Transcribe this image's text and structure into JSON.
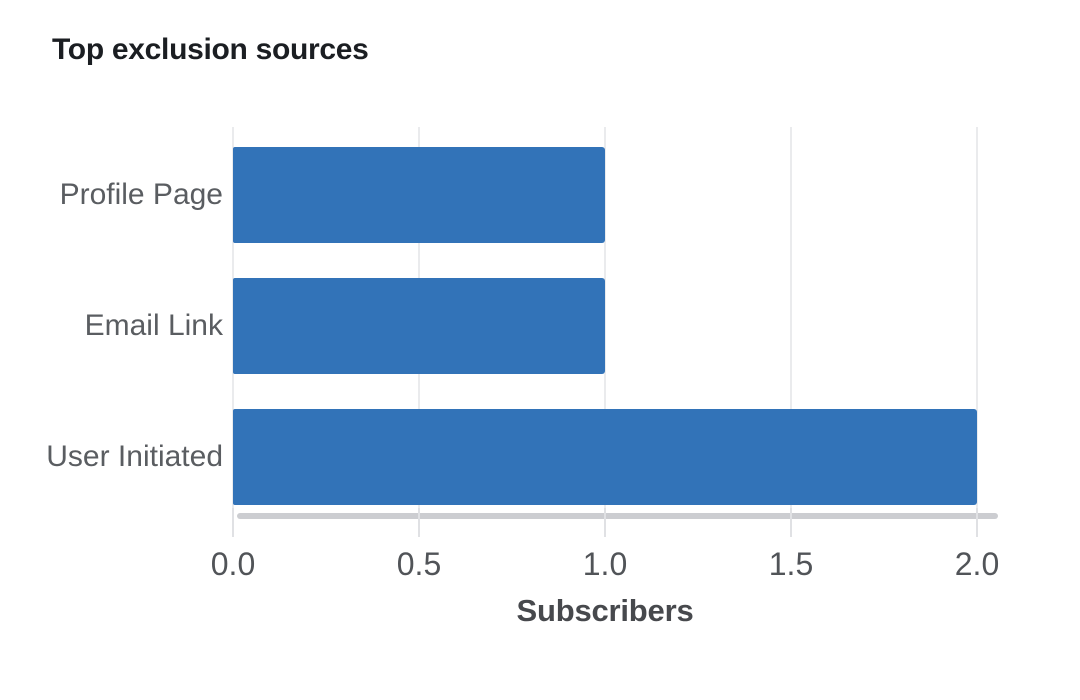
{
  "chart_data": {
    "type": "bar",
    "orientation": "horizontal",
    "title": "Top exclusion sources",
    "categories": [
      "Profile Page",
      "Email Link",
      "User Initiated"
    ],
    "values": [
      1,
      1,
      2
    ],
    "xlabel": "Subscribers",
    "ylabel": "",
    "xlim": [
      0,
      2.0
    ],
    "xticks": [
      0.0,
      0.5,
      1.0,
      1.5,
      2.0
    ],
    "xtick_labels": [
      "0.0",
      "0.5",
      "1.0",
      "1.5",
      "2.0"
    ],
    "grid": "vertical-only",
    "legend": "none",
    "colors": {
      "bar_fill": "#3273B8",
      "gridline": "#eaebed",
      "tick_mark": "#e0e1e4",
      "axis_line": "#cccdd1",
      "title_text": "#1b1e22",
      "category_text": "#5a5d61",
      "tick_text": "#515458",
      "xlabel_text": "#47494d",
      "background": "#ffffff"
    }
  }
}
